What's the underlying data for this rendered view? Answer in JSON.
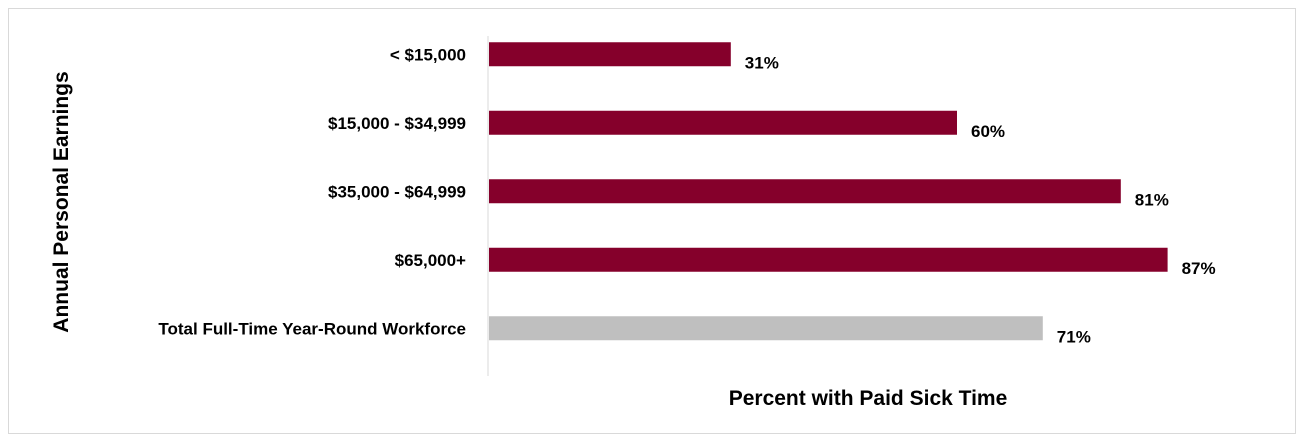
{
  "chart_data": {
    "type": "bar",
    "orientation": "horizontal",
    "title": "",
    "xlabel": "Percent with Paid Sick Time",
    "ylabel": "Annual Personal Earnings",
    "categories": [
      "< $15,000",
      "$15,000 - $34,999",
      "$35,000 - $64,999",
      "$65,000+",
      "Total Full-Time Year-Round Workforce"
    ],
    "values": [
      31,
      60,
      81,
      87,
      71
    ],
    "value_labels": [
      "31%",
      "60%",
      "81%",
      "87%",
      "71%"
    ],
    "bar_colors": [
      "#85002b",
      "#85002b",
      "#85002b",
      "#85002b",
      "#bfbfbf"
    ],
    "xlim": [
      0,
      100
    ],
    "grid": false,
    "legend": "none"
  }
}
